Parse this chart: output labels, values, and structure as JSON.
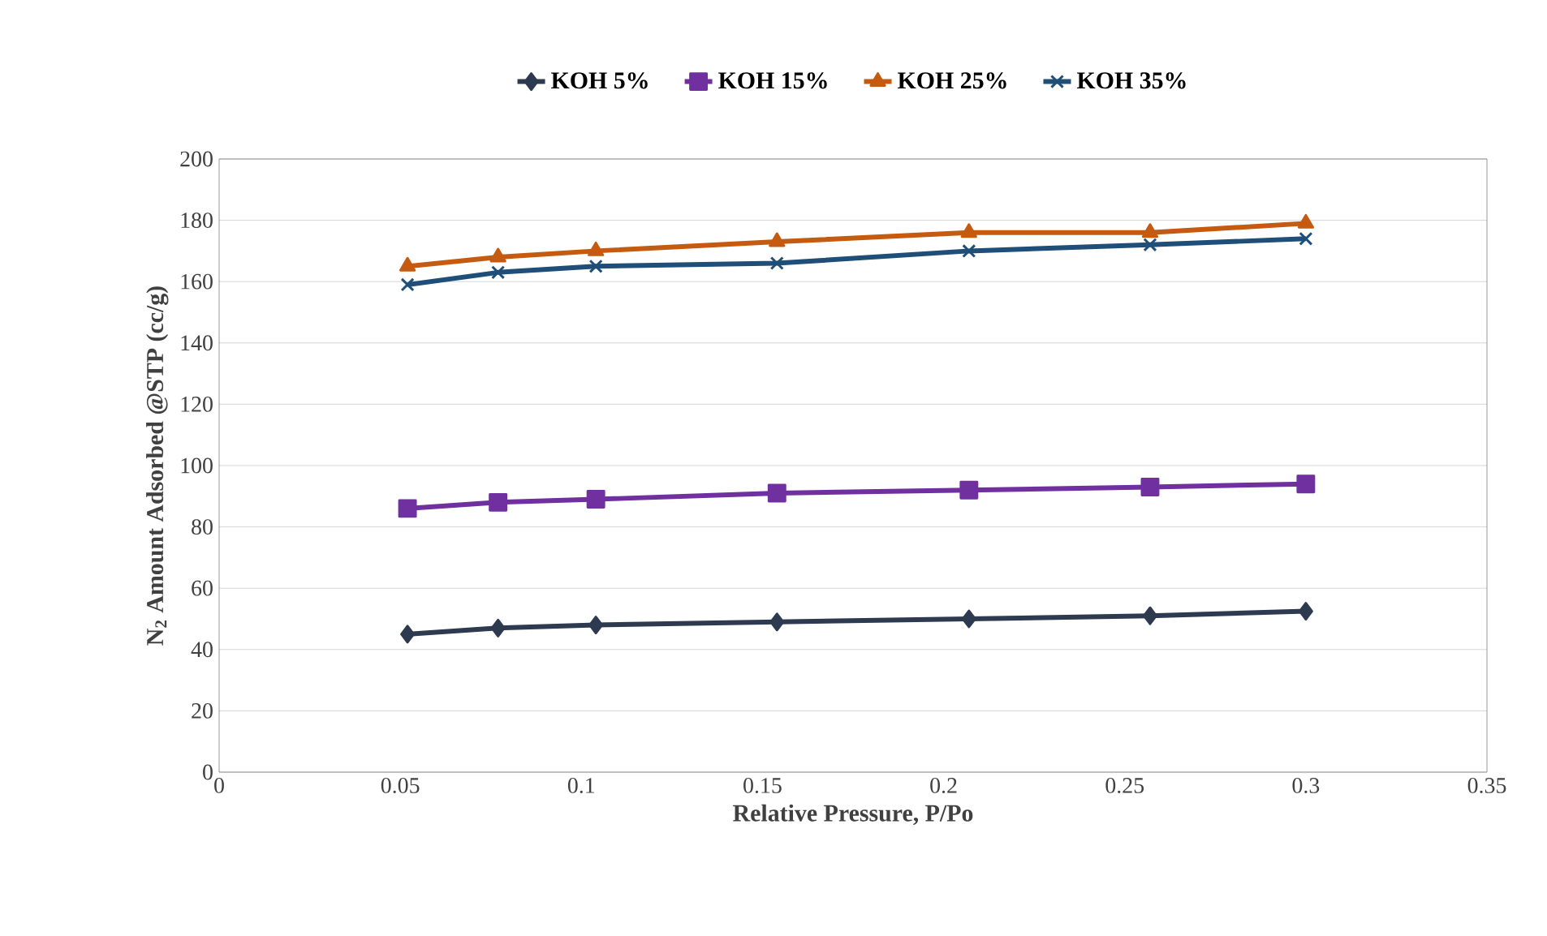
{
  "chart_data": {
    "type": "line",
    "xlabel": "Relative Pressure, P/Po",
    "ylabel": "N$_{2}$ Amount Adsorbed  @STP (cc/g)",
    "x": [
      0.052,
      0.077,
      0.104,
      0.154,
      0.207,
      0.257,
      0.3
    ],
    "series": [
      {
        "name": "KOH 5%",
        "color": "#2e3a4f",
        "marker": "diamond",
        "values": [
          45,
          47,
          48,
          49,
          50,
          51,
          52.5
        ]
      },
      {
        "name": "KOH 15%",
        "color": "#7030a0",
        "marker": "square",
        "values": [
          86,
          88,
          89,
          91,
          92,
          93,
          94
        ]
      },
      {
        "name": "KOH 25%",
        "color": "#c55a11",
        "marker": "triangle",
        "values": [
          165,
          168,
          170,
          173,
          176,
          176,
          179
        ]
      },
      {
        "name": "KOH 35%",
        "color": "#1f4e79",
        "marker": "cross",
        "values": [
          159,
          163,
          165,
          166,
          170,
          172,
          174
        ]
      }
    ],
    "xlim": [
      0,
      0.35
    ],
    "xticks": [
      0,
      0.05,
      0.1,
      0.15,
      0.2,
      0.25,
      0.3,
      0.35
    ],
    "ylim": [
      0,
      200
    ],
    "yticks": [
      0,
      20,
      40,
      60,
      80,
      100,
      120,
      140,
      160,
      180,
      200
    ],
    "grid": "y",
    "legend": "top",
    "line_style": "solid"
  }
}
